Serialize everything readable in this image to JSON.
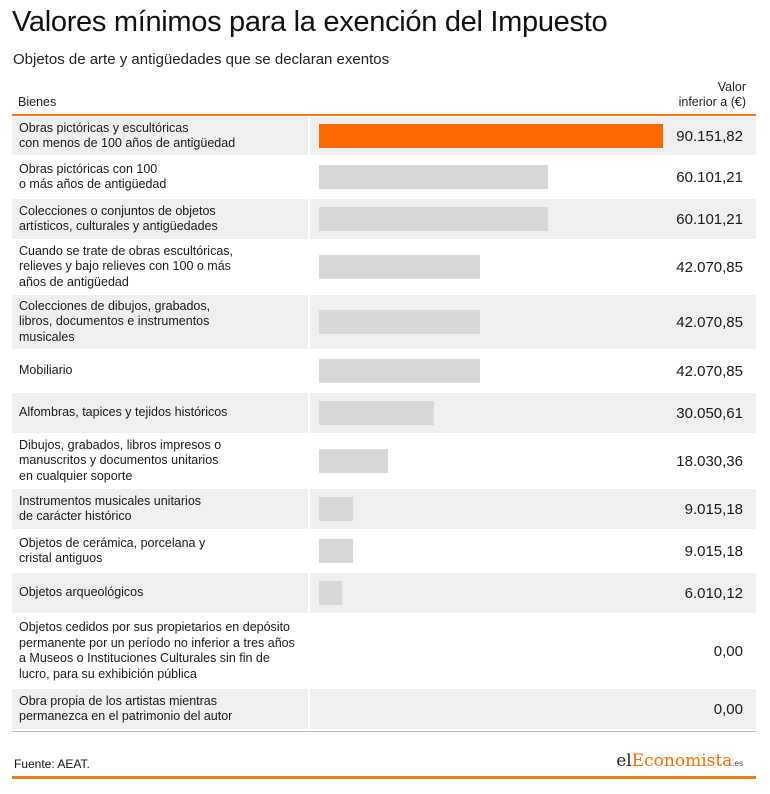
{
  "title": "Valores mínimos para la exención del Impuesto",
  "subtitle": "Objetos de arte y antigüedades que se declaran exentos",
  "columns": {
    "bienes": "Bienes",
    "valor_line1": "Valor",
    "valor_line2": "inferior a (€)"
  },
  "source": "Fuente: AEAT.",
  "logo": {
    "part1": "el",
    "part2": "Economista",
    "part3": ".es"
  },
  "colors": {
    "highlight": "#ff6a00",
    "bar": "#d8d8d8",
    "accent": "#f07b1f",
    "row_shade": "#efefef"
  },
  "chart_data": {
    "type": "bar",
    "orientation": "horizontal",
    "xlim": [
      0,
      90151.82
    ],
    "highlight_index": 0,
    "categories": [
      "Obras pictóricas y escultóricas\ncon menos de 100 años de antigüedad",
      "Obras pictóricas con 100\no más años de antigüedad",
      "Colecciones o conjuntos de objetos\nartísticos, culturales y antigüedades",
      "Cuando se trate de obras escultóricas,\nrelieves y bajo relieves con 100 o más\naños de antigüedad",
      "Colecciones de dibujos, grabados,\nlibros, documentos e instrumentos\nmusicales",
      "Mobiliario",
      "Alfombras, tapices y tejidos históricos",
      "Dibujos, grabados, libros impresos o\nmanuscritos y documentos unitarios\nen cualquier soporte",
      "Instrumentos musicales unitarios\nde carácter histórico",
      "Objetos de cerámica, porcelana y\ncristal antiguos",
      "Objetos arqueológicos",
      "Objetos cedidos por sus propietarios en depósito\npermanente por un período no inferior a tres años\na Museos o Instituciones Culturales sin fin de\nlucro, para su exhibición pública",
      "Obra propia de los artistas mientras\npermanezca en el patrimonio del autor"
    ],
    "values": [
      90151.82,
      60101.21,
      60101.21,
      42070.85,
      42070.85,
      42070.85,
      30050.61,
      18030.36,
      9015.18,
      9015.18,
      6010.12,
      0,
      0
    ],
    "value_labels": [
      "90.151,82",
      "60.101,21",
      "60.101,21",
      "42.070,85",
      "42.070,85",
      "42.070,85",
      "30.050,61",
      "18.030,36",
      "9.015,18",
      "9.015,18",
      "6.010,12",
      "0,00",
      "0,00"
    ]
  }
}
